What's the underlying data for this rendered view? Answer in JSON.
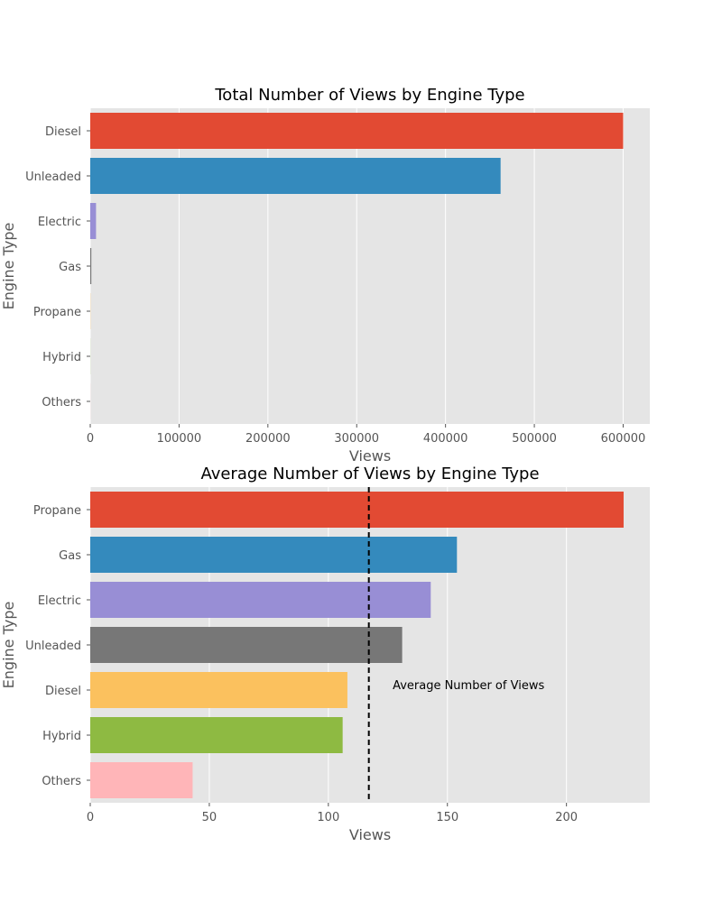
{
  "chart_data": [
    {
      "type": "bar",
      "orientation": "horizontal",
      "title": "Total Number of Views by Engine Type",
      "xlabel": "Views",
      "ylabel": "Engine Type",
      "categories": [
        "Diesel",
        "Unleaded",
        "Electric",
        "Gas",
        "Propane",
        "Hybrid",
        "Others"
      ],
      "values": [
        600000,
        462000,
        6500,
        1200,
        200,
        100,
        80
      ],
      "colors": [
        "#E24A33",
        "#348ABD",
        "#988ED5",
        "#777777",
        "#FBC15E",
        "#8EBA42",
        "#FFB5B8"
      ],
      "xlim": [
        0,
        630000
      ],
      "xticks": [
        0,
        100000,
        200000,
        300000,
        400000,
        500000,
        600000
      ],
      "xtick_labels": [
        "0",
        "100000",
        "200000",
        "300000",
        "400000",
        "500000",
        "600000"
      ],
      "grid": true,
      "style": "ggplot"
    },
    {
      "type": "bar",
      "orientation": "horizontal",
      "title": "Average Number of Views by Engine Type",
      "xlabel": "Views",
      "ylabel": "Engine Type",
      "categories": [
        "Propane",
        "Gas",
        "Electric",
        "Unleaded",
        "Diesel",
        "Hybrid",
        "Others"
      ],
      "values": [
        224,
        154,
        143,
        131,
        108,
        106,
        43
      ],
      "colors": [
        "#E24A33",
        "#348ABD",
        "#988ED5",
        "#777777",
        "#FBC15E",
        "#8EBA42",
        "#FFB5B8"
      ],
      "xlim": [
        0,
        235
      ],
      "xticks": [
        0,
        50,
        100,
        150,
        200
      ],
      "xtick_labels": [
        "0",
        "50",
        "100",
        "150",
        "200"
      ],
      "grid": true,
      "style": "ggplot",
      "reference_line": {
        "value": 117,
        "style": "dashed",
        "color": "#000000"
      },
      "annotation": {
        "text": "Average Number of Views",
        "x": 127,
        "category": "Diesel"
      }
    }
  ]
}
